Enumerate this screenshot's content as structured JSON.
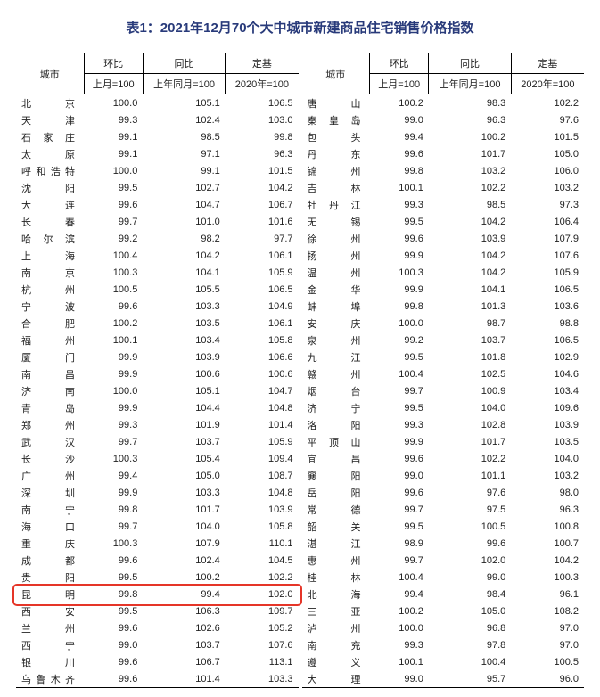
{
  "title": "表1：2021年12月70个大中城市新建商品住宅销售价格指数",
  "headers": {
    "city": "城市",
    "mom": "环比",
    "yoy": "同比",
    "base": "定基",
    "mom_sub": "上月=100",
    "yoy_sub": "上年同月=100",
    "base_sub": "2020年=100"
  },
  "highlight_city": "昆明",
  "highlight_style": {
    "color": "#e53528",
    "width": 2.5,
    "radius": 5
  },
  "left": [
    {
      "c": "北京",
      "m": "100.0",
      "y": "105.1",
      "b": "106.5"
    },
    {
      "c": "天津",
      "m": "99.3",
      "y": "102.4",
      "b": "103.0"
    },
    {
      "c": "石家庄",
      "m": "99.1",
      "y": "98.5",
      "b": "99.8"
    },
    {
      "c": "太原",
      "m": "99.1",
      "y": "97.1",
      "b": "96.3"
    },
    {
      "c": "呼和浩特",
      "m": "100.0",
      "y": "99.1",
      "b": "101.5"
    },
    {
      "c": "沈阳",
      "m": "99.5",
      "y": "102.7",
      "b": "104.2"
    },
    {
      "c": "大连",
      "m": "99.6",
      "y": "104.7",
      "b": "106.7"
    },
    {
      "c": "长春",
      "m": "99.7",
      "y": "101.0",
      "b": "101.6"
    },
    {
      "c": "哈尔滨",
      "m": "99.2",
      "y": "98.2",
      "b": "97.7"
    },
    {
      "c": "上海",
      "m": "100.4",
      "y": "104.2",
      "b": "106.1"
    },
    {
      "c": "南京",
      "m": "100.3",
      "y": "104.1",
      "b": "105.9"
    },
    {
      "c": "杭州",
      "m": "100.5",
      "y": "105.5",
      "b": "106.5"
    },
    {
      "c": "宁波",
      "m": "99.6",
      "y": "103.3",
      "b": "104.9"
    },
    {
      "c": "合肥",
      "m": "100.2",
      "y": "103.5",
      "b": "106.1"
    },
    {
      "c": "福州",
      "m": "100.1",
      "y": "103.4",
      "b": "105.8"
    },
    {
      "c": "厦门",
      "m": "99.9",
      "y": "103.9",
      "b": "106.6"
    },
    {
      "c": "南昌",
      "m": "99.9",
      "y": "100.6",
      "b": "100.6"
    },
    {
      "c": "济南",
      "m": "100.0",
      "y": "105.1",
      "b": "104.7"
    },
    {
      "c": "青岛",
      "m": "99.9",
      "y": "104.4",
      "b": "104.8"
    },
    {
      "c": "郑州",
      "m": "99.3",
      "y": "101.9",
      "b": "101.4"
    },
    {
      "c": "武汉",
      "m": "99.7",
      "y": "103.7",
      "b": "105.9"
    },
    {
      "c": "长沙",
      "m": "100.3",
      "y": "105.4",
      "b": "109.4"
    },
    {
      "c": "广州",
      "m": "99.4",
      "y": "105.0",
      "b": "108.7"
    },
    {
      "c": "深圳",
      "m": "99.9",
      "y": "103.3",
      "b": "104.8"
    },
    {
      "c": "南宁",
      "m": "99.8",
      "y": "101.7",
      "b": "103.9"
    },
    {
      "c": "海口",
      "m": "99.7",
      "y": "104.0",
      "b": "105.8"
    },
    {
      "c": "重庆",
      "m": "100.3",
      "y": "107.9",
      "b": "110.1"
    },
    {
      "c": "成都",
      "m": "99.6",
      "y": "102.4",
      "b": "104.5"
    },
    {
      "c": "贵阳",
      "m": "99.5",
      "y": "100.2",
      "b": "102.2"
    },
    {
      "c": "昆明",
      "m": "99.8",
      "y": "99.4",
      "b": "102.0"
    },
    {
      "c": "西安",
      "m": "99.5",
      "y": "106.3",
      "b": "109.7"
    },
    {
      "c": "兰州",
      "m": "99.6",
      "y": "102.6",
      "b": "105.2"
    },
    {
      "c": "西宁",
      "m": "99.0",
      "y": "103.7",
      "b": "107.6"
    },
    {
      "c": "银川",
      "m": "99.6",
      "y": "106.7",
      "b": "113.1"
    },
    {
      "c": "乌鲁木齐",
      "m": "99.6",
      "y": "101.4",
      "b": "103.3"
    }
  ],
  "right": [
    {
      "c": "唐山",
      "m": "100.2",
      "y": "98.3",
      "b": "102.2"
    },
    {
      "c": "秦皇岛",
      "m": "99.0",
      "y": "96.3",
      "b": "97.6"
    },
    {
      "c": "包头",
      "m": "99.4",
      "y": "100.2",
      "b": "101.5"
    },
    {
      "c": "丹东",
      "m": "99.6",
      "y": "101.7",
      "b": "105.0"
    },
    {
      "c": "锦州",
      "m": "99.8",
      "y": "103.2",
      "b": "106.0"
    },
    {
      "c": "吉林",
      "m": "100.1",
      "y": "102.2",
      "b": "103.2"
    },
    {
      "c": "牡丹江",
      "m": "99.3",
      "y": "98.5",
      "b": "97.3"
    },
    {
      "c": "无锡",
      "m": "99.5",
      "y": "104.2",
      "b": "106.4"
    },
    {
      "c": "徐州",
      "m": "99.6",
      "y": "103.9",
      "b": "107.9"
    },
    {
      "c": "扬州",
      "m": "99.9",
      "y": "104.2",
      "b": "107.6"
    },
    {
      "c": "温州",
      "m": "100.3",
      "y": "104.2",
      "b": "105.9"
    },
    {
      "c": "金华",
      "m": "99.9",
      "y": "104.1",
      "b": "106.5"
    },
    {
      "c": "蚌埠",
      "m": "99.8",
      "y": "101.3",
      "b": "103.6"
    },
    {
      "c": "安庆",
      "m": "100.0",
      "y": "98.7",
      "b": "98.8"
    },
    {
      "c": "泉州",
      "m": "99.2",
      "y": "103.7",
      "b": "106.5"
    },
    {
      "c": "九江",
      "m": "99.5",
      "y": "101.8",
      "b": "102.9"
    },
    {
      "c": "赣州",
      "m": "100.4",
      "y": "102.5",
      "b": "104.6"
    },
    {
      "c": "烟台",
      "m": "99.7",
      "y": "100.9",
      "b": "103.4"
    },
    {
      "c": "济宁",
      "m": "99.5",
      "y": "104.0",
      "b": "109.6"
    },
    {
      "c": "洛阳",
      "m": "99.3",
      "y": "102.8",
      "b": "103.9"
    },
    {
      "c": "平顶山",
      "m": "99.9",
      "y": "101.7",
      "b": "103.5"
    },
    {
      "c": "宜昌",
      "m": "99.6",
      "y": "102.2",
      "b": "104.0"
    },
    {
      "c": "襄阳",
      "m": "99.0",
      "y": "101.1",
      "b": "103.2"
    },
    {
      "c": "岳阳",
      "m": "99.6",
      "y": "97.6",
      "b": "98.0"
    },
    {
      "c": "常德",
      "m": "99.7",
      "y": "97.5",
      "b": "96.3"
    },
    {
      "c": "韶关",
      "m": "99.5",
      "y": "100.5",
      "b": "100.8"
    },
    {
      "c": "湛江",
      "m": "98.9",
      "y": "99.6",
      "b": "100.7"
    },
    {
      "c": "惠州",
      "m": "99.7",
      "y": "102.0",
      "b": "104.2"
    },
    {
      "c": "桂林",
      "m": "100.4",
      "y": "99.0",
      "b": "100.3"
    },
    {
      "c": "北海",
      "m": "99.4",
      "y": "98.4",
      "b": "96.1"
    },
    {
      "c": "三亚",
      "m": "100.2",
      "y": "105.0",
      "b": "108.2"
    },
    {
      "c": "泸州",
      "m": "100.0",
      "y": "96.8",
      "b": "97.0"
    },
    {
      "c": "南充",
      "m": "99.3",
      "y": "97.8",
      "b": "97.0"
    },
    {
      "c": "遵义",
      "m": "100.1",
      "y": "100.4",
      "b": "100.5"
    },
    {
      "c": "大理",
      "m": "99.0",
      "y": "95.7",
      "b": "96.0"
    }
  ]
}
